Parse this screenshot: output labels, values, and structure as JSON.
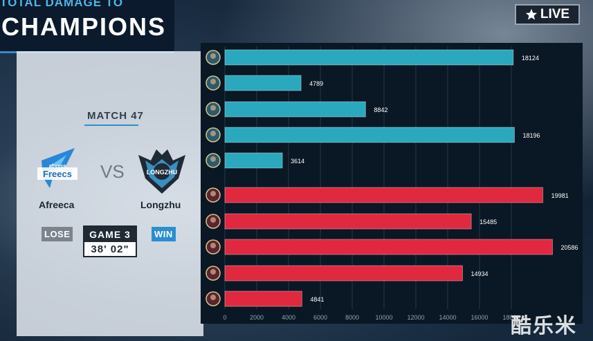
{
  "header": {
    "subtitle": "TOTAL DAMAGE TO",
    "title": "CHAMPIONS",
    "live_label": "LIVE"
  },
  "match": {
    "label": "MATCH 47",
    "vs": "VS",
    "game_label": "GAME 3",
    "duration": "38' 02\""
  },
  "teams": {
    "left": {
      "name": "Afreeca",
      "logo_text": "Freecs",
      "logo_top": "afreeca",
      "result": "LOSE"
    },
    "right": {
      "name": "Longzhu",
      "logo_text": "LONGZHU",
      "result": "WIN"
    }
  },
  "colors": {
    "blue_team": "#2aa8bd",
    "red_team": "#e0283f",
    "win": "#2a8fd0",
    "lose": "#7b848d"
  },
  "watermark": "酷乐米",
  "chart_data": {
    "type": "bar",
    "orientation": "horizontal",
    "xlim": [
      0,
      20000
    ],
    "xticks": [
      0,
      2000,
      4000,
      6000,
      8000,
      10000,
      12000,
      14000,
      16000,
      18000
    ],
    "grid": true,
    "series": [
      {
        "team": "blue",
        "values": [
          18124,
          4789,
          8842,
          18196,
          3614
        ]
      },
      {
        "team": "red",
        "values": [
          19981,
          15485,
          20586,
          14934,
          4841
        ]
      }
    ],
    "champion_icons": [
      "champion-portrait-icon",
      "champion-portrait-icon",
      "champion-portrait-icon",
      "champion-portrait-icon",
      "champion-portrait-icon",
      "champion-portrait-icon",
      "champion-portrait-icon",
      "champion-portrait-icon",
      "champion-portrait-icon",
      "champion-portrait-icon"
    ]
  }
}
